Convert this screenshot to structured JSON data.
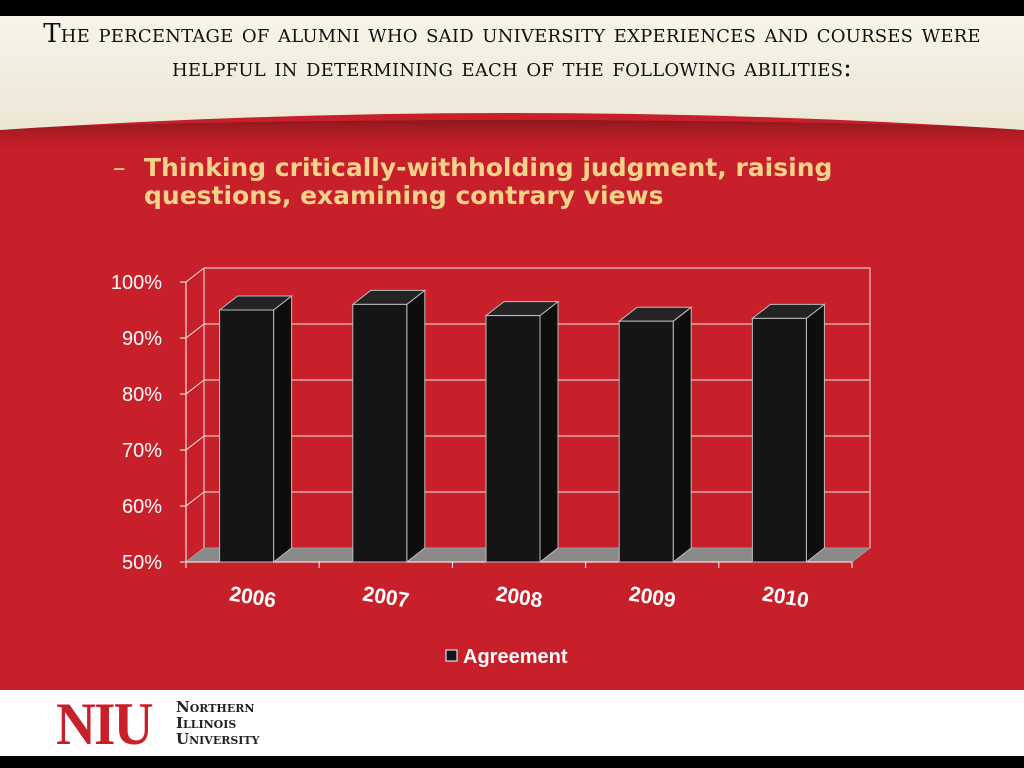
{
  "slide": {
    "title": "The percentage of alumni who said university experiences and courses were helpful in determining each of the following abilities:",
    "subtitle_dash": "–",
    "subtitle": "Thinking critically-withholding judgment, raising questions, examining contrary views"
  },
  "colors": {
    "background": "#c8202a",
    "header_band": "#f2efe2",
    "subtitle_text": "#f3d28a",
    "bar": "#151515",
    "floor": "#8a8a8a",
    "footer": "#ffffff",
    "brand_red": "#c8202a"
  },
  "chart_data": {
    "type": "bar",
    "style": "3d-column",
    "categories": [
      "2006",
      "2007",
      "2008",
      "2009",
      "2010"
    ],
    "series": [
      {
        "name": "Agreement",
        "values": [
          95,
          96,
          94,
          93,
          93.5
        ]
      }
    ],
    "ylim": [
      50,
      100
    ],
    "yticks": [
      "50%",
      "60%",
      "70%",
      "80%",
      "90%",
      "100%"
    ],
    "grid": true,
    "legend": "bottom",
    "xlabel": "",
    "ylabel": ""
  },
  "footer": {
    "logo_text": "NIU",
    "logo_name": [
      "Northern",
      "Illinois",
      "University"
    ]
  }
}
